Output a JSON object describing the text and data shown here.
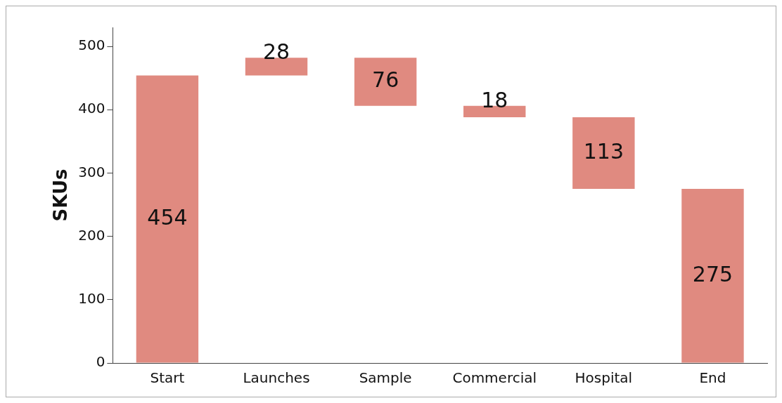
{
  "chart_data": {
    "type": "bar",
    "ylabel": "SKUs",
    "categories": [
      "Start",
      "Launches",
      "Sample",
      "Commercial",
      "Hospital",
      "End"
    ],
    "values": [
      454,
      28,
      76,
      18,
      113,
      275
    ],
    "base": [
      0,
      454,
      406,
      388,
      275,
      0
    ],
    "color": "#e08a80",
    "ylim": [
      0,
      530
    ],
    "yticks": [
      0,
      100,
      200,
      300,
      400,
      500
    ],
    "grid": false,
    "legend": false,
    "data_labels": true
  }
}
